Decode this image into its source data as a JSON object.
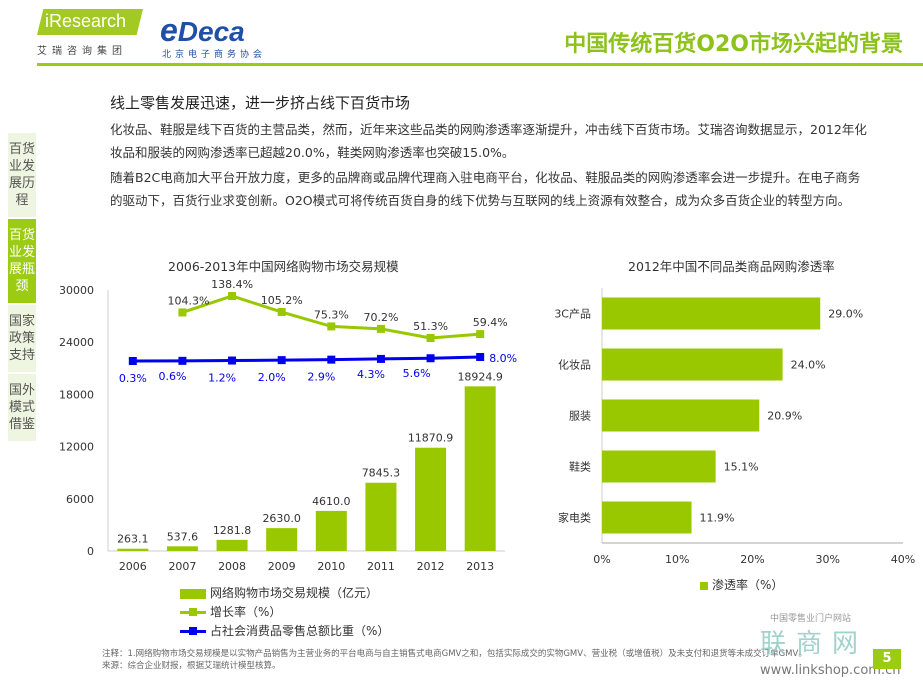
{
  "header": {
    "logo_iresearch": "iResearch",
    "logo_iresearch_sub": "艾瑞咨询集团",
    "logo_deca": "Deca",
    "logo_deca_sub": "北京电子商务协会",
    "title": "中国传统百货O2O市场兴起的背景",
    "accent_color": "#9ccb14"
  },
  "sidebar": {
    "items": [
      {
        "label": "百货业发展历程",
        "active": false
      },
      {
        "label": "百货业发展瓶颈",
        "active": true
      },
      {
        "label": "国家政策支持",
        "active": false
      },
      {
        "label": "国外模式借鉴",
        "active": false
      }
    ]
  },
  "content": {
    "section_title": "线上零售发展迅速，进一步挤占线下百货市场",
    "paragraph1": "化妆品、鞋服是线下百货的主营品类，然而，近年来这些品类的网购渗透率逐渐提升，冲击线下百货市场。艾瑞咨询数据显示，2012年化妆品和服装的网购渗透率已超越20.0%，鞋类网购渗透率也突破15.0%。",
    "paragraph2": "随着B2C电商加大平台开放力度，更多的品牌商或品牌代理商入驻电商平台，化妆品、鞋服品类的网购渗透率会进一步提升。在电子商务的驱动下，百货行业求变创新。O2O模式可将传统百货自身的线下优势与互联网的线上资源有效整合，成为众多百货企业的转型方向。"
  },
  "chart_data": [
    {
      "type": "bar",
      "title": "2006-2013年中国网络购物市场交易规模",
      "categories": [
        "2006",
        "2007",
        "2008",
        "2009",
        "2010",
        "2011",
        "2012",
        "2013"
      ],
      "ylim": [
        0,
        30000
      ],
      "yticks": [
        "0",
        "6000",
        "12000",
        "18000",
        "24000",
        "30000"
      ],
      "series": [
        {
          "name": "网络购物市场交易规模（亿元）",
          "kind": "bar",
          "color": "#99c800",
          "values": [
            263.1,
            537.6,
            1281.8,
            2630.0,
            4610.0,
            7845.3,
            11870.9,
            18924.9
          ],
          "labels": [
            "263.1",
            "537.6",
            "1281.8",
            "2630.0",
            "4610.0",
            "7845.3",
            "11870.9",
            "18924.9"
          ]
        },
        {
          "name": "增长率（%）",
          "kind": "line",
          "color": "#99c800",
          "values": [
            null,
            104.3,
            138.4,
            105.2,
            75.3,
            70.2,
            51.3,
            59.4
          ],
          "labels": [
            "",
            "104.3%",
            "138.4%",
            "105.2%",
            "75.3%",
            "70.2%",
            "51.3%",
            "59.4%"
          ]
        },
        {
          "name": "占社会消费品零售总额比重（%）",
          "kind": "line",
          "color": "#0000ee",
          "values": [
            0.3,
            0.6,
            1.2,
            2.0,
            2.9,
            4.3,
            5.6,
            8.0
          ],
          "labels": [
            "0.3%",
            "0.6%",
            "1.2%",
            "2.0%",
            "2.9%",
            "4.3%",
            "5.6%",
            "8.0%"
          ]
        }
      ],
      "grid": false,
      "legend": "bottom"
    },
    {
      "type": "bar",
      "orientation": "horizontal",
      "title": "2012年中国不同品类商品网购渗透率",
      "categories": [
        "3C产品",
        "化妆品",
        "服装",
        "鞋类",
        "家电类"
      ],
      "values": [
        29.0,
        24.0,
        20.9,
        15.1,
        11.9
      ],
      "labels": [
        "29.0%",
        "24.0%",
        "20.9%",
        "15.1%",
        "11.9%"
      ],
      "xlim": [
        0,
        40
      ],
      "xticks": [
        "0%",
        "10%",
        "20%",
        "30%",
        "40%"
      ],
      "series_name": "渗透率（%）",
      "color": "#99c800",
      "grid": false,
      "legend": "bottom"
    }
  ],
  "footer": {
    "note1": "注释：1.网络购物市场交易规模是以实物产品销售为主营业务的平台电商与自主销售式电商GMV之和，包括实际成交的实物GMV、营业税（或增值税）及未支付和退货等未成交订单GMV。",
    "source": "来源：综合企业财报，根据艾瑞统计模型核算。",
    "watermark_top": "中国零售业门户网站",
    "watermark_main": "联商网",
    "watermark_url": "www.linkshop.com.cn",
    "page_number": "5"
  }
}
